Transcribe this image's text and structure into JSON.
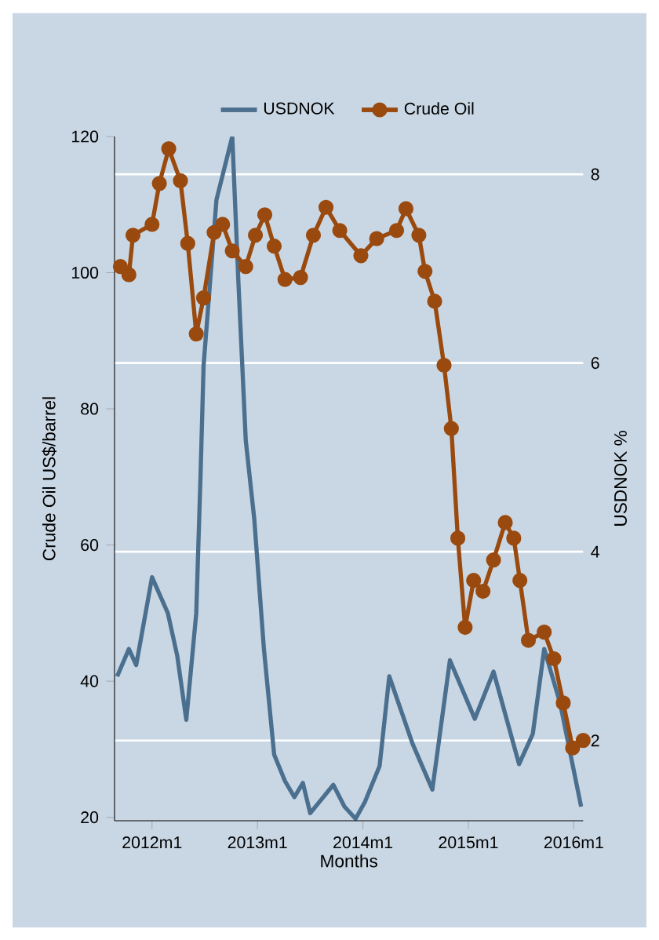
{
  "chart_data": {
    "type": "line",
    "xlabel": "Months",
    "ylabel": "Crude Oil US$/barrel",
    "y2label": "USDNOK %",
    "xlim": [
      "2011-08-23",
      "2016-02-03"
    ],
    "xticks": [
      {
        "value": "2012-01",
        "label": "2012m1"
      },
      {
        "value": "2013-01",
        "label": "2013m1"
      },
      {
        "value": "2014-01",
        "label": "2014m1"
      },
      {
        "value": "2015-01",
        "label": "2015m1"
      },
      {
        "value": "2016-01",
        "label": "2016m1"
      }
    ],
    "ylim": [
      19.5,
      120
    ],
    "yticks": [
      20,
      40,
      60,
      80,
      100,
      120
    ],
    "y2lim": [
      1.15,
      8.4
    ],
    "y2ticks": [
      2,
      4,
      6,
      8
    ],
    "grid": "y2",
    "legend": "top",
    "series": [
      {
        "name": "USDNOK",
        "color": "#4b6f8e",
        "axis": "y2",
        "marker": "none",
        "x": [
          "2011-09-02",
          "2011-10-12",
          "2011-11-07",
          "2012-01-01",
          "2012-02-25",
          "2012-03-27",
          "2012-04-28",
          "2012-06-02",
          "2012-06-17",
          "2012-06-27",
          "2012-08-11",
          "2012-10-05",
          "2012-10-26",
          "2012-11-21",
          "2012-12-20",
          "2013-01-23",
          "2013-02-28",
          "2013-04-05",
          "2013-05-07",
          "2013-06-06",
          "2013-07-01",
          "2013-09-20",
          "2013-10-28",
          "2013-12-06",
          "2014-01-08",
          "2014-02-28",
          "2014-04-01",
          "2014-06-20",
          "2014-08-28",
          "2014-10-28",
          "2015-01-23",
          "2015-03-27",
          "2015-06-24",
          "2015-08-11",
          "2015-09-20",
          "2015-11-14",
          "2016-01-26"
        ],
        "values": [
          2.68,
          2.97,
          2.8,
          3.73,
          3.35,
          2.9,
          2.22,
          3.35,
          4.85,
          5.97,
          7.73,
          8.4,
          6.85,
          5.18,
          4.35,
          2.97,
          1.85,
          1.57,
          1.4,
          1.55,
          1.23,
          1.53,
          1.3,
          1.17,
          1.35,
          1.73,
          2.68,
          1.97,
          1.48,
          2.85,
          2.23,
          2.73,
          1.75,
          2.07,
          2.97,
          2.4,
          1.3
        ]
      },
      {
        "name": "Crude Oil",
        "color": "#9a4a0e",
        "marker": "circle",
        "x": [
          "2011-09-13",
          "2011-10-12",
          "2011-10-26",
          "2012-01-01",
          "2012-01-26",
          "2012-02-28",
          "2012-04-08",
          "2012-05-03",
          "2012-06-02",
          "2012-06-27",
          "2012-08-03",
          "2012-09-02",
          "2012-10-05",
          "2012-11-21",
          "2012-12-24",
          "2013-01-26",
          "2013-02-28",
          "2013-04-05",
          "2013-05-28",
          "2013-07-12",
          "2013-08-25",
          "2013-10-12",
          "2013-12-24",
          "2014-02-18",
          "2014-04-26",
          "2014-05-28",
          "2014-07-12",
          "2014-08-03",
          "2014-09-06",
          "2014-10-08",
          "2014-11-03",
          "2014-11-25",
          "2014-12-20",
          "2015-01-19",
          "2015-02-21",
          "2015-03-27",
          "2015-05-07",
          "2015-06-06",
          "2015-06-27",
          "2015-07-26",
          "2015-09-20",
          "2015-10-23",
          "2015-11-25",
          "2015-12-27",
          "2016-02-03"
        ],
        "values": [
          100.9,
          99.7,
          105.5,
          107.1,
          113.1,
          118.2,
          113.5,
          104.3,
          91.0,
          96.3,
          105.9,
          107.1,
          103.2,
          100.9,
          105.5,
          108.5,
          103.9,
          99.0,
          99.3,
          105.5,
          109.6,
          106.2,
          102.5,
          105.0,
          106.2,
          109.4,
          105.5,
          100.2,
          95.8,
          86.4,
          77.1,
          61.0,
          47.9,
          54.8,
          53.2,
          57.8,
          63.3,
          61.0,
          54.8,
          46.0,
          47.2,
          43.3,
          36.8,
          30.2,
          31.3
        ]
      }
    ]
  }
}
